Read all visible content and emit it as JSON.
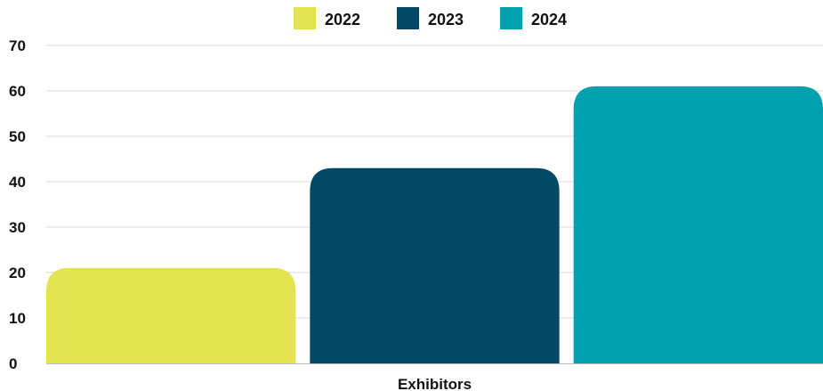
{
  "chart_data": {
    "type": "bar",
    "categories": [
      "Exhibitors"
    ],
    "series": [
      {
        "name": "2022",
        "values": [
          21
        ],
        "color": "#e2e34e"
      },
      {
        "name": "2023",
        "values": [
          43
        ],
        "color": "#034864"
      },
      {
        "name": "2024",
        "values": [
          61
        ],
        "color": "#01a0ae"
      }
    ],
    "ylim": [
      0,
      70
    ],
    "yticks": [
      0,
      10,
      20,
      30,
      40,
      50,
      60,
      70
    ],
    "title": "",
    "xlabel": "",
    "ylabel": "",
    "grid": true,
    "legend_position": "top-center"
  }
}
